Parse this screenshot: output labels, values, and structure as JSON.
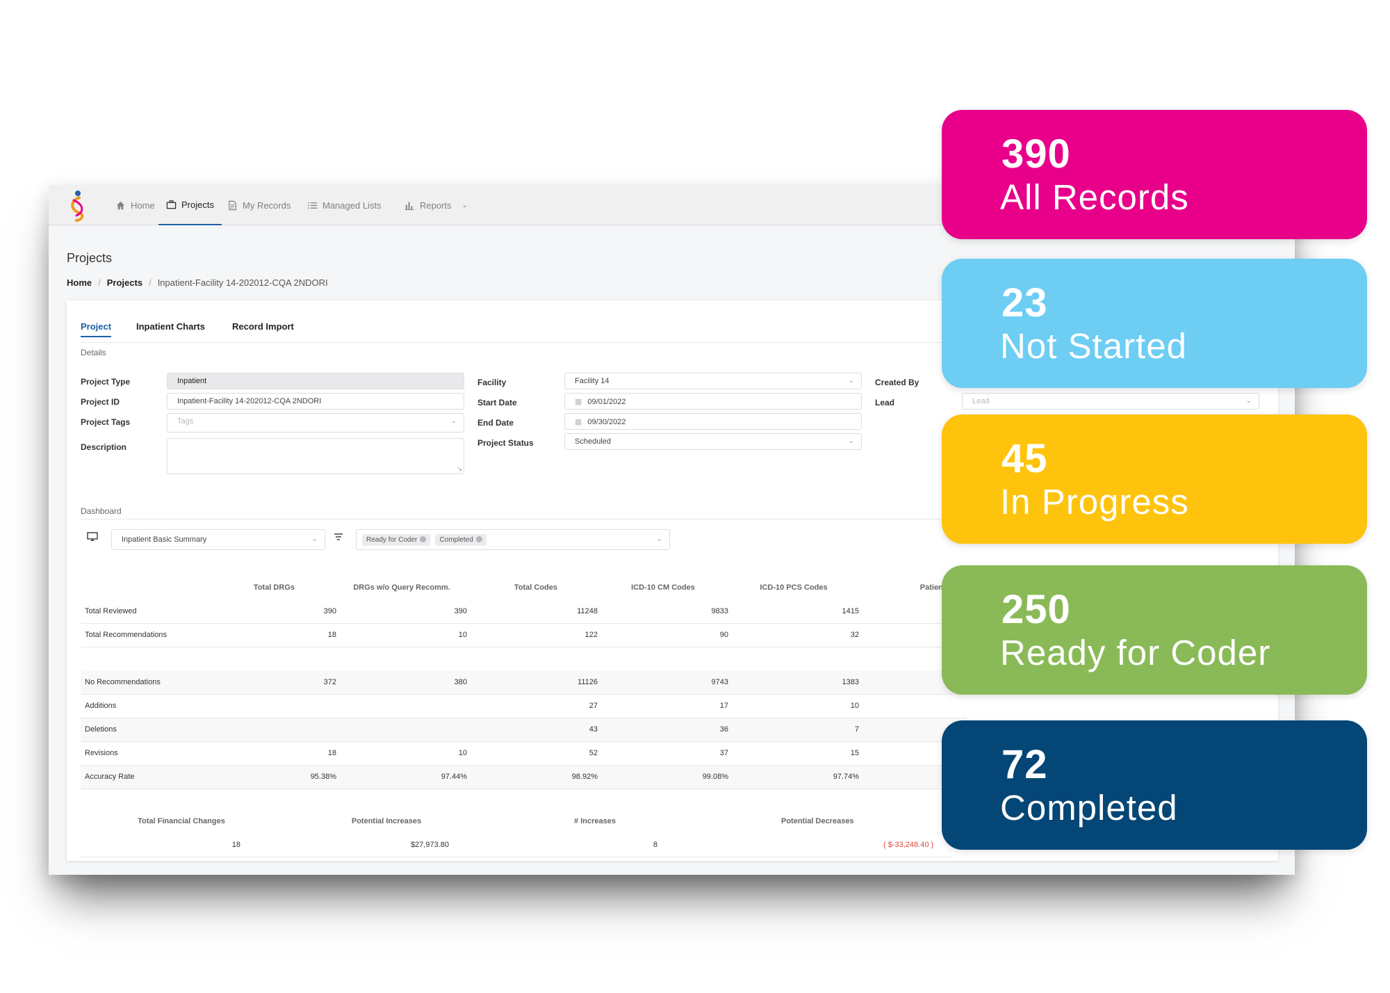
{
  "nav": {
    "items": [
      {
        "label": "Home",
        "icon": "home-icon"
      },
      {
        "label": "Projects",
        "icon": "briefcase-icon"
      },
      {
        "label": "My Records",
        "icon": "document-icon"
      },
      {
        "label": "Managed Lists",
        "icon": "list-icon"
      },
      {
        "label": "Reports",
        "icon": "bar-chart-icon"
      }
    ],
    "active": "Projects"
  },
  "page": {
    "title": "Projects",
    "breadcrumb": [
      "Home",
      "Projects",
      "Inpatient-Facility 14-202012-CQA 2NDORI"
    ]
  },
  "tabs": [
    "Project",
    "Inpatient Charts",
    "Record Import"
  ],
  "details": {
    "section_label": "Details",
    "project_type": {
      "label": "Project Type",
      "value": "Inpatient"
    },
    "project_id": {
      "label": "Project ID",
      "value": "Inpatient-Facility 14-202012-CQA 2NDORI"
    },
    "project_tags": {
      "label": "Project Tags",
      "placeholder": "Tags"
    },
    "description": {
      "label": "Description",
      "value": ""
    },
    "facility": {
      "label": "Facility",
      "value": "Facility 14"
    },
    "start_date": {
      "label": "Start Date",
      "value": "09/01/2022"
    },
    "end_date": {
      "label": "End Date",
      "value": "09/30/2022"
    },
    "project_status": {
      "label": "Project Status",
      "value": "Scheduled"
    },
    "created_by": {
      "label": "Created By"
    },
    "lead": {
      "label": "Lead",
      "placeholder": "Lead"
    }
  },
  "dashboard": {
    "section_label": "Dashboard",
    "summary_select": "Inpatient Basic Summary",
    "filter_chips": [
      "Ready for Coder",
      "Completed"
    ],
    "columns": [
      "Total DRGs",
      "DRGs w/o Query Recomm.",
      "Total Codes",
      "ICD-10 CM Codes",
      "ICD-10 PCS Codes",
      "Patient Statu"
    ],
    "rows_top": [
      {
        "label": "Total Reviewed",
        "values": [
          "390",
          "390",
          "11248",
          "9833",
          "1415"
        ]
      },
      {
        "label": "Total Recommendations",
        "values": [
          "18",
          "10",
          "122",
          "90",
          "32"
        ]
      }
    ],
    "rows_bottom": [
      {
        "label": "No Recommendations",
        "values": [
          "372",
          "380",
          "11126",
          "9743",
          "1383"
        ]
      },
      {
        "label": "Additions",
        "values": [
          "",
          "",
          "27",
          "17",
          "10"
        ]
      },
      {
        "label": "Deletions",
        "values": [
          "",
          "",
          "43",
          "36",
          "7"
        ]
      },
      {
        "label": "Revisions",
        "values": [
          "18",
          "10",
          "52",
          "37",
          "15"
        ]
      },
      {
        "label": "Accuracy Rate",
        "values": [
          "95.38%",
          "97.44%",
          "98.92%",
          "99.08%",
          "97.74%"
        ]
      }
    ],
    "financial": {
      "columns": [
        "Total Financial Changes",
        "Potential Increases",
        "# Increases",
        "Potential Decreases"
      ],
      "values": [
        "18",
        "$27,973.80",
        "8",
        "( $-33,248.40 )"
      ]
    }
  },
  "status_cards": [
    {
      "count": "390",
      "label": "All Records",
      "color": "#e8008a"
    },
    {
      "count": "23",
      "label": "Not Started",
      "color": "#6ecdf3"
    },
    {
      "count": "45",
      "label": "In Progress",
      "color": "#fec30d"
    },
    {
      "count": "250",
      "label": "Ready for Coder",
      "color": "#8aba58"
    },
    {
      "count": "72",
      "label": "Completed",
      "color": "#044675"
    }
  ]
}
